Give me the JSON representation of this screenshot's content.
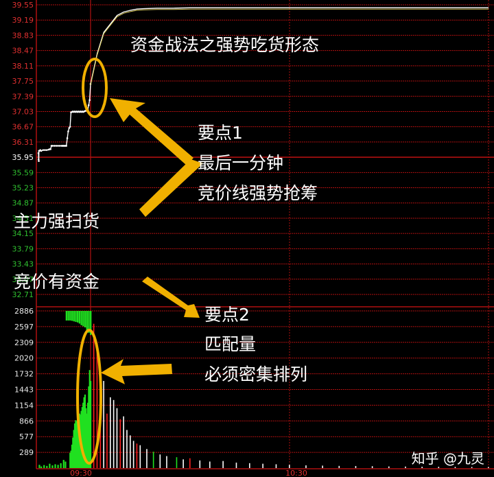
{
  "chart_data": {
    "type": "line",
    "price_ticks_up": [
      "39.55",
      "39.19",
      "38.83",
      "38.47",
      "38.11",
      "37.75",
      "37.39",
      "37.03",
      "36.67",
      "36.31"
    ],
    "price_ref_tick": "35.95",
    "price_ticks_down": [
      "35.59",
      "35.23",
      "34.87",
      "34.51",
      "34.15",
      "33.79",
      "33.43",
      "33.07",
      "32.71"
    ],
    "volume_ticks": [
      "2886",
      "2597",
      "2309",
      "2020",
      "1732",
      "1443",
      "1154",
      "866",
      "577",
      "289"
    ],
    "time_ticks": [
      "09:30",
      "10:30"
    ],
    "ylim_price": [
      32.71,
      39.55
    ],
    "ylim_volume": [
      0,
      2886
    ],
    "auction_price": {
      "x": [
        0,
        0.2,
        0.4,
        0.6,
        1,
        2,
        3,
        5,
        7,
        9,
        11,
        12,
        13,
        14,
        15,
        17,
        19,
        21,
        23,
        25,
        26,
        27,
        28,
        29,
        30,
        31,
        32,
        33,
        34,
        35,
        36,
        37,
        38,
        39,
        40,
        41,
        42,
        43,
        44,
        45,
        46,
        47,
        48,
        49,
        50,
        51,
        52,
        53,
        54,
        55,
        56
      ],
      "y": [
        36.05,
        35.9,
        35.86,
        36.1,
        36.1,
        36.12,
        36.1,
        36.12,
        36.12,
        36.12,
        36.13,
        36.14,
        36.14,
        36.22,
        36.22,
        36.22,
        36.22,
        36.22,
        36.22,
        36.22,
        36.22,
        36.22,
        36.22,
        36.22,
        36.22,
        36.4,
        36.56,
        36.64,
        36.67,
        37.01,
        37.02,
        37.03,
        37.02,
        37.03,
        37.02,
        37.03,
        37.02,
        37.03,
        37.02,
        37.03,
        37.02,
        37.03,
        37.02,
        37.03,
        37.04,
        37.05,
        37.06,
        37.08,
        37.18,
        37.3,
        37.68
      ]
    },
    "session_price": {
      "x": [
        0,
        2,
        4,
        6,
        8,
        10,
        12,
        14,
        16,
        20,
        25,
        30,
        40,
        60,
        90,
        120
      ],
      "y": [
        37.68,
        38.4,
        38.9,
        39.1,
        39.3,
        39.38,
        39.42,
        39.45,
        39.46,
        39.47,
        39.47,
        39.48,
        39.48,
        39.48,
        39.48,
        39.48
      ]
    },
    "auction_volume": [
      {
        "x": 1,
        "v": 60
      },
      {
        "x": 3,
        "v": 30
      },
      {
        "x": 6,
        "v": 55
      },
      {
        "x": 9,
        "v": 40
      },
      {
        "x": 12,
        "v": 80
      },
      {
        "x": 15,
        "v": 50
      },
      {
        "x": 18,
        "v": 70
      },
      {
        "x": 21,
        "v": 60
      },
      {
        "x": 24,
        "v": 90
      },
      {
        "x": 27,
        "v": 150
      },
      {
        "x": 29,
        "v": 120
      },
      {
        "x": 34,
        "v": 280
      },
      {
        "x": 35,
        "v": 320
      },
      {
        "x": 36,
        "v": 430
      },
      {
        "x": 37,
        "v": 560
      },
      {
        "x": 38,
        "v": 700
      },
      {
        "x": 39,
        "v": 820
      },
      {
        "x": 40,
        "v": 880
      },
      {
        "x": 41,
        "v": 860
      },
      {
        "x": 42,
        "v": 900
      },
      {
        "x": 43,
        "v": 950
      },
      {
        "x": 44,
        "v": 1000
      },
      {
        "x": 45,
        "v": 980
      },
      {
        "x": 46,
        "v": 1050
      },
      {
        "x": 47,
        "v": 1120
      },
      {
        "x": 48,
        "v": 1200
      },
      {
        "x": 49,
        "v": 1300
      },
      {
        "x": 50,
        "v": 1350
      },
      {
        "x": 51,
        "v": 1100
      },
      {
        "x": 52,
        "v": 1000
      },
      {
        "x": 53,
        "v": 1200
      },
      {
        "x": 54,
        "v": 1500
      },
      {
        "x": 55,
        "v": 1800
      },
      {
        "x": 56,
        "v": 1600
      }
    ],
    "auction_matched": [
      {
        "x": 30,
        "v": 2886
      },
      {
        "x": 32,
        "v": 2886
      },
      {
        "x": 34,
        "v": 2886
      },
      {
        "x": 36,
        "v": 2880
      },
      {
        "x": 38,
        "v": 2870
      },
      {
        "x": 40,
        "v": 2860
      },
      {
        "x": 42,
        "v": 2850
      },
      {
        "x": 44,
        "v": 2830
      },
      {
        "x": 46,
        "v": 2800
      },
      {
        "x": 48,
        "v": 2780
      },
      {
        "x": 50,
        "v": 2760
      },
      {
        "x": 52,
        "v": 2700
      },
      {
        "x": 54,
        "v": 2660
      },
      {
        "x": 56,
        "v": 2620
      }
    ],
    "session_volume": [
      {
        "x": 1,
        "v": 2650,
        "c": "red"
      },
      {
        "x": 2,
        "v": 2300,
        "c": "red"
      },
      {
        "x": 3,
        "v": 1700,
        "c": "red"
      },
      {
        "x": 4,
        "v": 1600,
        "c": "white"
      },
      {
        "x": 5,
        "v": 1000,
        "c": "red"
      },
      {
        "x": 6,
        "v": 1300,
        "c": "white"
      },
      {
        "x": 7,
        "v": 1250,
        "c": "white"
      },
      {
        "x": 8,
        "v": 1100,
        "c": "white"
      },
      {
        "x": 9,
        "v": 900,
        "c": "red"
      },
      {
        "x": 10,
        "v": 950,
        "c": "white"
      },
      {
        "x": 11,
        "v": 700,
        "c": "white"
      },
      {
        "x": 12,
        "v": 600,
        "c": "white"
      },
      {
        "x": 13,
        "v": 500,
        "c": "white"
      },
      {
        "x": 14,
        "v": 450,
        "c": "red"
      },
      {
        "x": 15,
        "v": 420,
        "c": "white"
      },
      {
        "x": 17,
        "v": 350,
        "c": "white"
      },
      {
        "x": 19,
        "v": 300,
        "c": "green"
      },
      {
        "x": 21,
        "v": 250,
        "c": "white"
      },
      {
        "x": 23,
        "v": 220,
        "c": "white"
      },
      {
        "x": 26,
        "v": 200,
        "c": "green"
      },
      {
        "x": 28,
        "v": 160,
        "c": "white"
      },
      {
        "x": 30,
        "v": 180,
        "c": "red"
      },
      {
        "x": 33,
        "v": 140,
        "c": "white"
      },
      {
        "x": 36,
        "v": 120,
        "c": "white"
      },
      {
        "x": 40,
        "v": 130,
        "c": "white"
      },
      {
        "x": 44,
        "v": 100,
        "c": "white"
      },
      {
        "x": 48,
        "v": 90,
        "c": "white"
      },
      {
        "x": 52,
        "v": 80,
        "c": "white"
      },
      {
        "x": 56,
        "v": 70,
        "c": "white"
      },
      {
        "x": 60,
        "v": 60,
        "c": "white"
      },
      {
        "x": 65,
        "v": 50,
        "c": "white"
      },
      {
        "x": 70,
        "v": 45,
        "c": "white"
      },
      {
        "x": 75,
        "v": 40,
        "c": "white"
      },
      {
        "x": 80,
        "v": 38,
        "c": "white"
      },
      {
        "x": 85,
        "v": 35,
        "c": "white"
      },
      {
        "x": 90,
        "v": 30,
        "c": "white"
      },
      {
        "x": 95,
        "v": 28,
        "c": "white"
      },
      {
        "x": 100,
        "v": 25,
        "c": "white"
      },
      {
        "x": 105,
        "v": 24,
        "c": "white"
      },
      {
        "x": 110,
        "v": 22,
        "c": "white"
      },
      {
        "x": 115,
        "v": 20,
        "c": "white"
      },
      {
        "x": 120,
        "v": 20,
        "c": "white"
      }
    ]
  },
  "annotations": {
    "title": "资金战法之强势吃货形态",
    "point1_head": "要点1",
    "point1_line1": "最后一分钟",
    "point1_line2": "竞价线强势抢筹",
    "left_label1": "主力强扫货",
    "left_label2": "竞价有资金",
    "point2_head": "要点2",
    "point2_line1": "匹配量",
    "point2_line2": "必须密集排列"
  },
  "watermark": "知乎 @九灵",
  "colors": {
    "background": "#000000",
    "grid_red": "#b01010",
    "tick_up": "#e03030",
    "tick_down": "#30c030",
    "tick_ref": "#ffffff",
    "price_line": "#ffffff",
    "highlight": "#f0b000",
    "volume_red": "#ff2020",
    "volume_green": "#20e020",
    "volume_white": "#ffffff"
  }
}
